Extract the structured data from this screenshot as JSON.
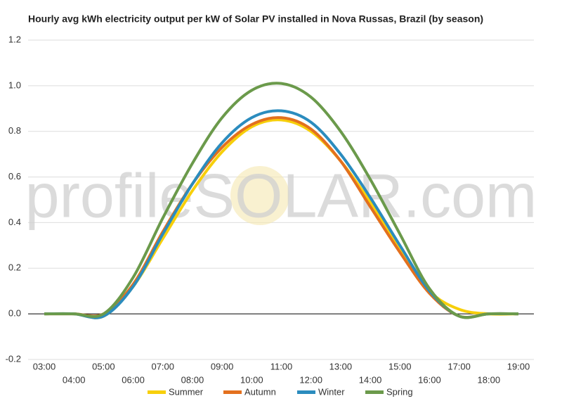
{
  "chart_data": {
    "type": "line",
    "title": "Hourly avg kWh electricity output per kW of Solar PV installed in Nova Russas, Brazil (by season)",
    "watermark": "profileSOLAR.com",
    "categories": [
      "03:00",
      "04:00",
      "05:00",
      "06:00",
      "07:00",
      "08:00",
      "09:00",
      "10:00",
      "11:00",
      "12:00",
      "13:00",
      "14:00",
      "15:00",
      "16:00",
      "17:00",
      "18:00",
      "19:00"
    ],
    "series": [
      {
        "name": "Summer",
        "color": "#f7cf0a",
        "values": [
          0,
          0,
          -0.01,
          0.12,
          0.33,
          0.54,
          0.71,
          0.82,
          0.85,
          0.8,
          0.67,
          0.49,
          0.29,
          0.1,
          0.02,
          0,
          0
        ]
      },
      {
        "name": "Autumn",
        "color": "#e3701e",
        "values": [
          0,
          0,
          0,
          0.13,
          0.36,
          0.57,
          0.73,
          0.83,
          0.86,
          0.81,
          0.67,
          0.47,
          0.27,
          0.09,
          -0.01,
          0,
          0
        ]
      },
      {
        "name": "Winter",
        "color": "#2b8cbe",
        "values": [
          0,
          0,
          -0.01,
          0.12,
          0.35,
          0.57,
          0.75,
          0.86,
          0.89,
          0.84,
          0.7,
          0.51,
          0.3,
          0.1,
          -0.01,
          0,
          0
        ]
      },
      {
        "name": "Spring",
        "color": "#6b9a4b",
        "values": [
          0,
          0,
          0,
          0.16,
          0.42,
          0.66,
          0.86,
          0.98,
          1.01,
          0.95,
          0.8,
          0.59,
          0.35,
          0.11,
          -0.01,
          0,
          0
        ]
      }
    ],
    "ylim": [
      -0.2,
      1.2
    ],
    "yticks": [
      -0.2,
      {
        "value": 0,
        "label": "0.0"
      },
      0.2,
      0.4,
      0.6,
      0.8,
      {
        "value": 1,
        "label": "1.0"
      },
      1.2
    ],
    "grid": true,
    "legend": "bottom"
  }
}
